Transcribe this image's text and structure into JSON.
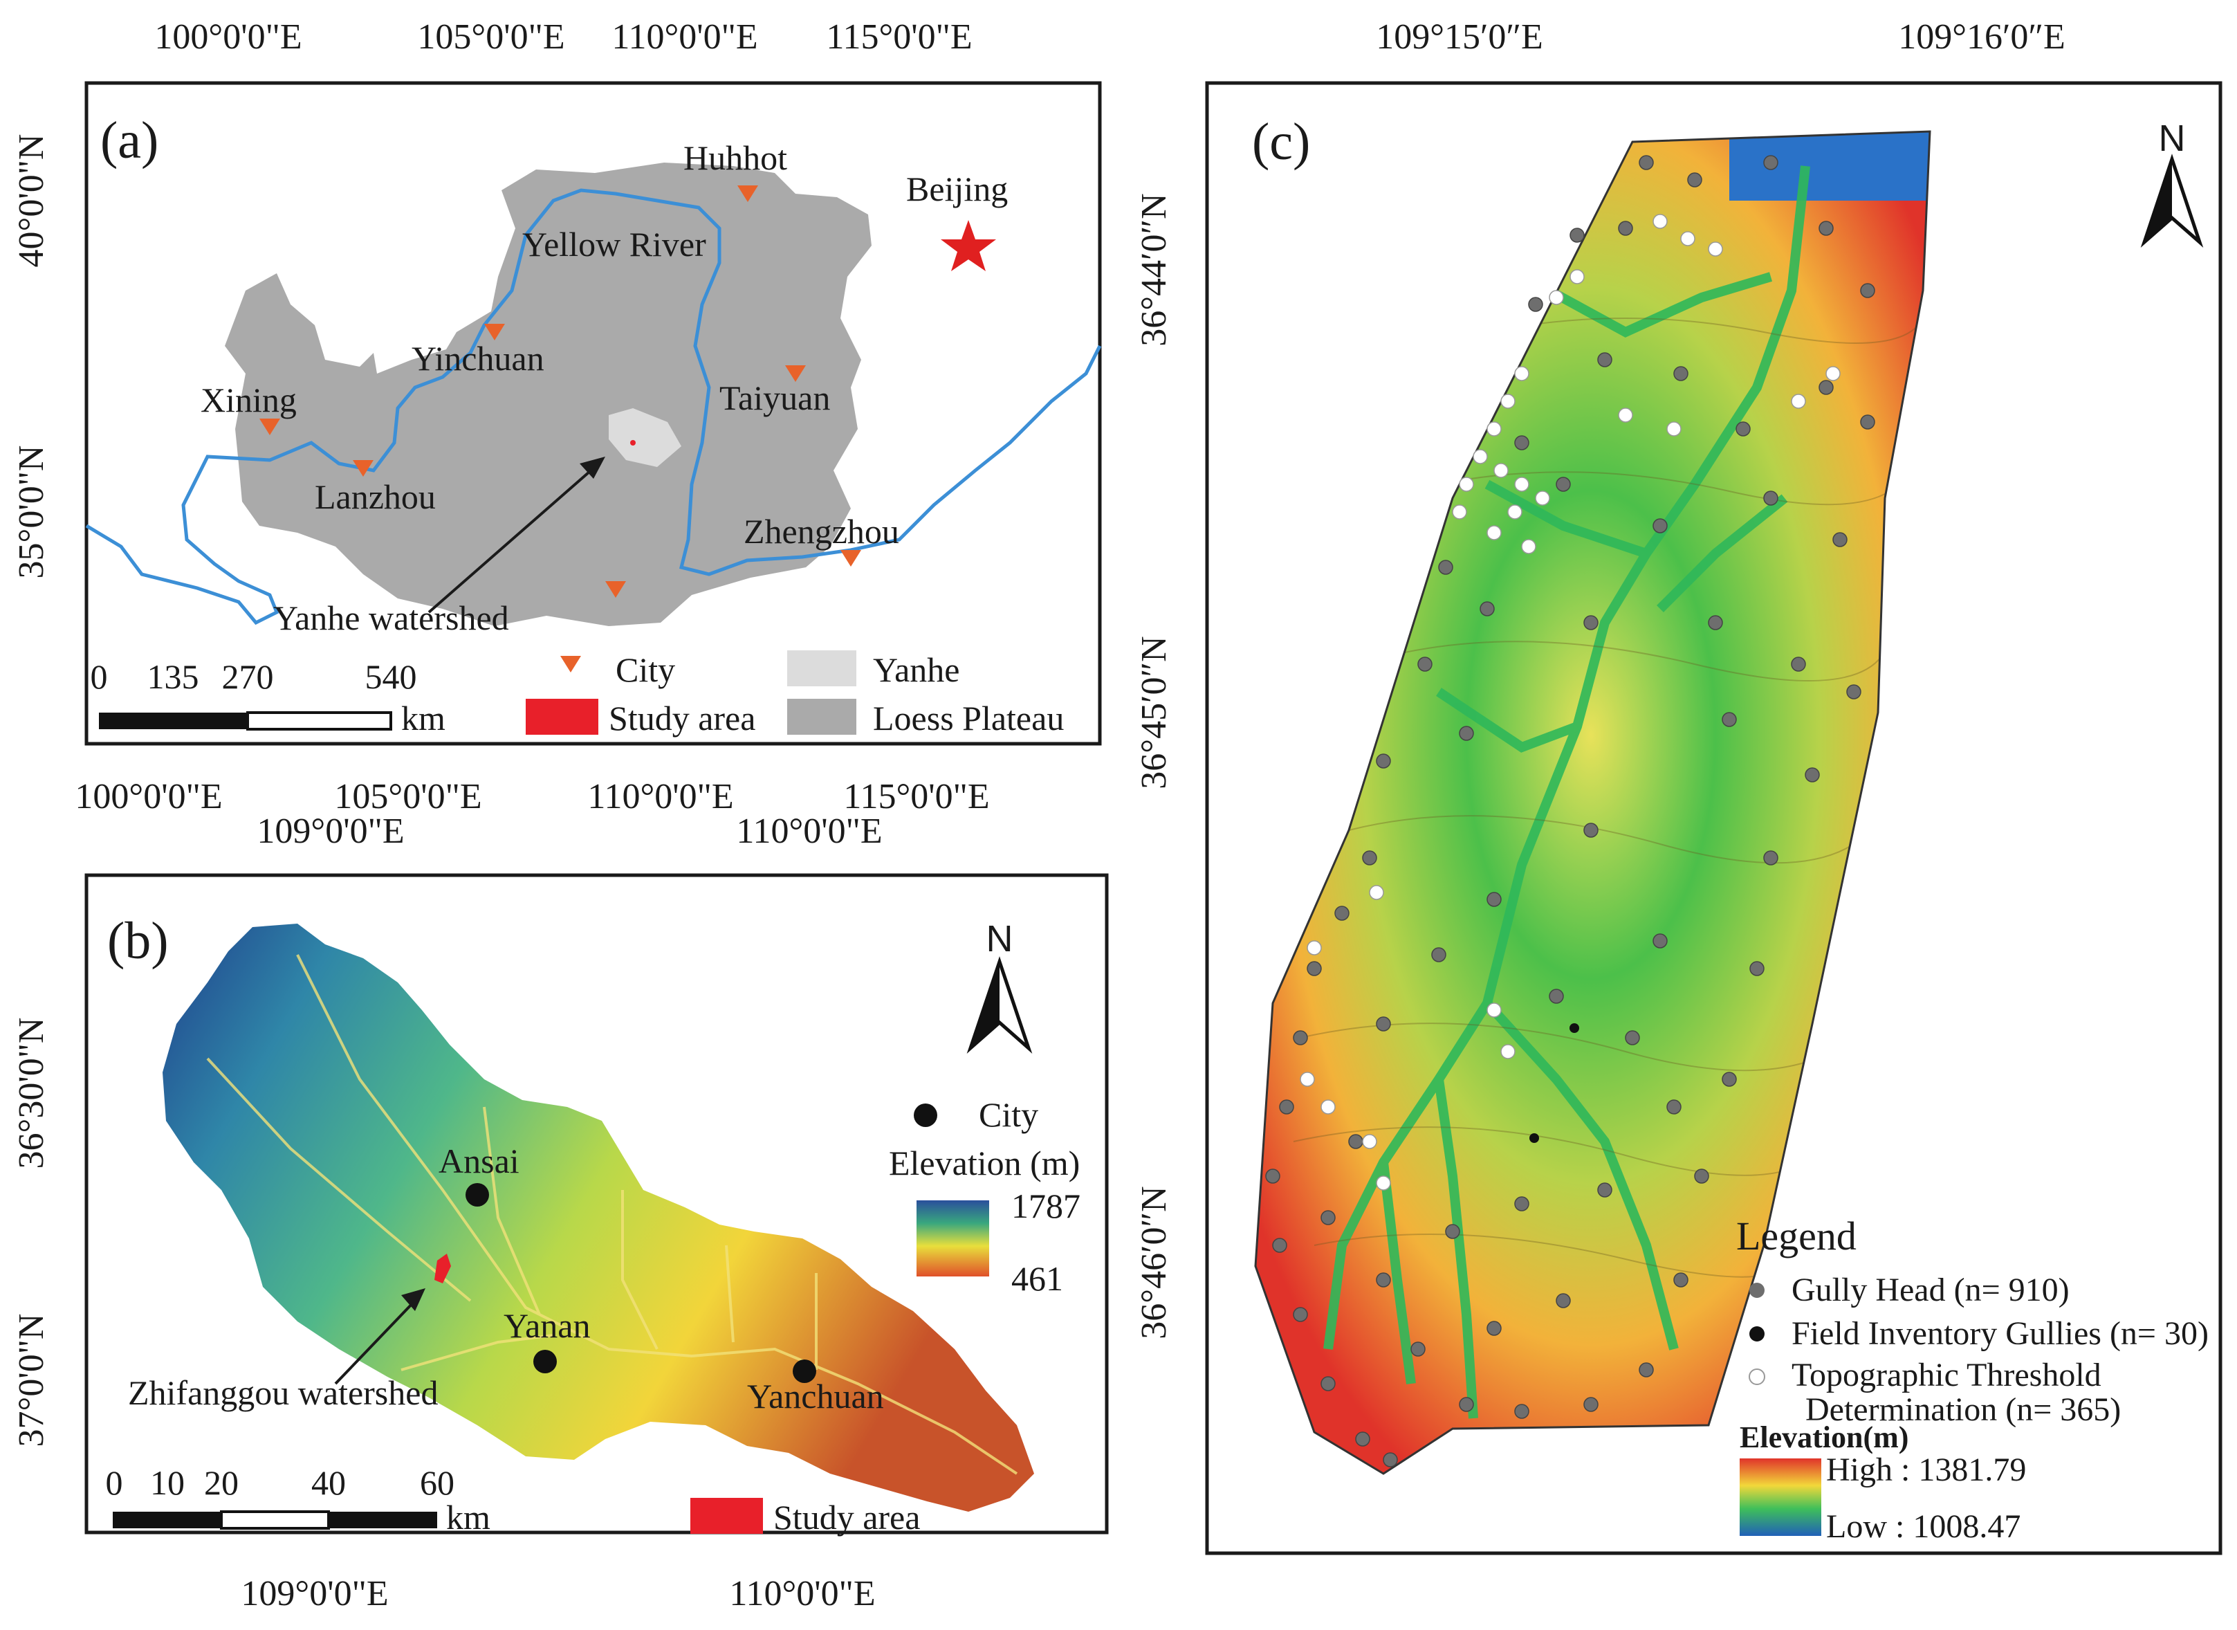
{
  "panel_a": {
    "label": "(a)",
    "top_ticks": [
      "100°0'0\"E",
      "105°0'0\"E",
      "110°0'0\"E",
      "115°0'0\"E"
    ],
    "bottom_ticks": [
      "100°0'0\"E",
      "105°0'0\"E",
      "110°0'0\"E",
      "115°0'0\"E"
    ],
    "left_ticks": [
      "40°0'0\"N",
      "35°0'0\"N"
    ],
    "cities": [
      "Huhhot",
      "Yinchuan",
      "Xining",
      "Lanzhou",
      "Taiyuan",
      "Zhengzhou"
    ],
    "capital": "Beijing",
    "river_label": "Yellow River",
    "watershed_label": "Yanhe watershed",
    "scale": {
      "ticks": [
        "0",
        "135",
        "270",
        "540"
      ],
      "unit": "km"
    },
    "legend": {
      "city": "City",
      "yanhe": "Yanhe",
      "study_area": "Study area",
      "loess": "Loess Plateau"
    },
    "colors": {
      "loess": "#aaaaaa",
      "yanhe": "#dcdcdc",
      "river": "#3c8fd6",
      "city": "#e8622a",
      "star": "#e02020",
      "study": "#e8202a"
    }
  },
  "panel_b": {
    "label": "(b)",
    "top_ticks": [
      "109°0'0\"E",
      "110°0'0\"E"
    ],
    "bottom_ticks": [
      "109°0'0\"E",
      "110°0'0\"E"
    ],
    "left_ticks": [
      "36°30'0\"N",
      "37°0'0\"N"
    ],
    "cities": [
      "Ansai",
      "Yanan",
      "Yanchuan"
    ],
    "watershed_label": "Zhifanggou watershed",
    "north": "N",
    "legend": {
      "city": "City",
      "elev_title": "Elevation (m)",
      "elev_high": "1787",
      "elev_low": "461",
      "study_area": "Study area"
    },
    "scale": {
      "ticks": [
        "0",
        "10",
        "20",
        "40",
        "60"
      ],
      "unit": "km"
    }
  },
  "panel_c": {
    "label": "(c)",
    "top_ticks": [
      "109°15′0″E",
      "109°16′0″E"
    ],
    "left_ticks": [
      "36°44′0″N",
      "36°45′0″N",
      "36°46′0″N"
    ],
    "north": "N",
    "legend": {
      "title": "Legend",
      "gully_head": "Gully Head (n= 910)",
      "field": "Field Inventory Gullies (n= 30)",
      "topo_line1": "Topographic Threshold",
      "topo_line2": "Determination    (n= 365)",
      "elev_title": "Elevation(m)",
      "high": "High : 1381.79",
      "low": "Low : 1008.47"
    }
  }
}
